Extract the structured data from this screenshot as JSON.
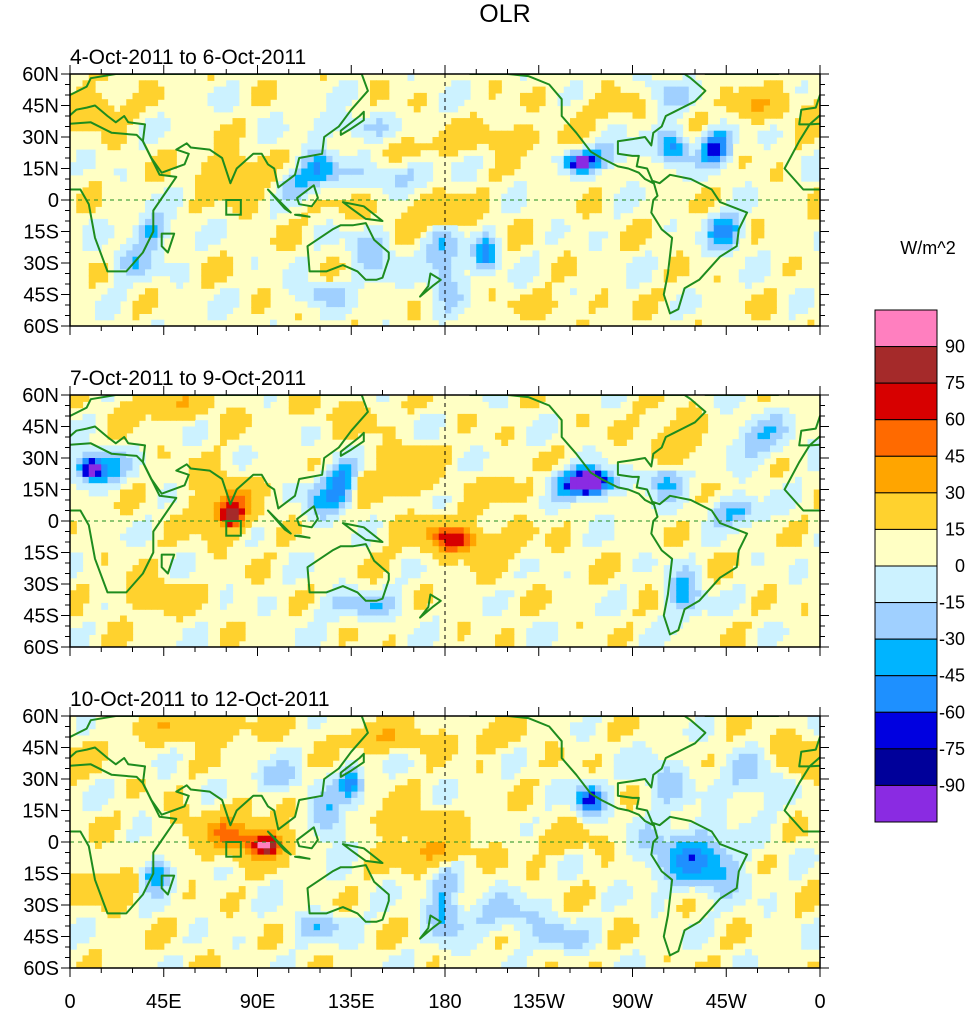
{
  "chart_data": {
    "type": "heatmap",
    "title": "OLR",
    "units": "W/m^2",
    "panels": [
      {
        "title": "4-Oct-2011 to 6-Oct-2011",
        "anomalies": [
          {
            "lon": 75,
            "lat": 15,
            "value": 30,
            "rx": 10,
            "ry": 6
          },
          {
            "lon": 85,
            "lat": 5,
            "value": 30,
            "rx": 6,
            "ry": 5
          },
          {
            "lon": 110,
            "lat": 8,
            "value": -30,
            "rx": 7,
            "ry": 6
          },
          {
            "lon": 120,
            "lat": 15,
            "value": -45,
            "rx": 6,
            "ry": 6
          },
          {
            "lon": 135,
            "lat": 35,
            "value": -30,
            "rx": 12,
            "ry": 4
          },
          {
            "lon": 155,
            "lat": 12,
            "value": -30,
            "rx": 14,
            "ry": 5
          },
          {
            "lon": 170,
            "lat": 25,
            "value": 15,
            "rx": 12,
            "ry": 5
          },
          {
            "lon": 160,
            "lat": -5,
            "value": 15,
            "rx": 25,
            "ry": 6
          },
          {
            "lon": 180,
            "lat": -8,
            "value": 30,
            "rx": 8,
            "ry": 4
          },
          {
            "lon": 180,
            "lat": -30,
            "value": -45,
            "rx": 6,
            "ry": 12
          },
          {
            "lon": 200,
            "lat": -25,
            "value": -60,
            "rx": 4,
            "ry": 6
          },
          {
            "lon": 245,
            "lat": 18,
            "value": -75,
            "rx": 6,
            "ry": 3
          },
          {
            "lon": 260,
            "lat": 22,
            "value": -30,
            "rx": 10,
            "ry": 5
          },
          {
            "lon": 290,
            "lat": 25,
            "value": -60,
            "rx": 5,
            "ry": 6
          },
          {
            "lon": 310,
            "lat": 25,
            "value": -75,
            "rx": 5,
            "ry": 6
          },
          {
            "lon": 315,
            "lat": -15,
            "value": -60,
            "rx": 6,
            "ry": 6
          },
          {
            "lon": 210,
            "lat": 30,
            "value": 30,
            "rx": 14,
            "ry": 4
          },
          {
            "lon": 40,
            "lat": -15,
            "value": -45,
            "rx": 6,
            "ry": 6
          },
          {
            "lon": 30,
            "lat": -30,
            "value": -30,
            "rx": 8,
            "ry": 6
          },
          {
            "lon": 10,
            "lat": 45,
            "value": 30,
            "rx": 10,
            "ry": 6
          },
          {
            "lon": 260,
            "lat": 45,
            "value": 15,
            "rx": 15,
            "ry": 5
          },
          {
            "lon": 285,
            "lat": 50,
            "value": -30,
            "rx": 8,
            "ry": 6
          },
          {
            "lon": 145,
            "lat": -25,
            "value": -30,
            "rx": 8,
            "ry": 10
          },
          {
            "lon": 330,
            "lat": 45,
            "value": 30,
            "rx": 12,
            "ry": 5
          },
          {
            "lon": 235,
            "lat": -50,
            "value": 15,
            "rx": 15,
            "ry": 4
          },
          {
            "lon": 120,
            "lat": -45,
            "value": -30,
            "rx": 8,
            "ry": 4
          }
        ]
      },
      {
        "title": "7-Oct-2011 to 9-Oct-2011",
        "anomalies": [
          {
            "lon": 75,
            "lat": 8,
            "value": 45,
            "rx": 10,
            "ry": 10
          },
          {
            "lon": 78,
            "lat": 2,
            "value": 60,
            "rx": 4,
            "ry": 4
          },
          {
            "lon": 10,
            "lat": 25,
            "value": -75,
            "rx": 4,
            "ry": 4
          },
          {
            "lon": 15,
            "lat": 25,
            "value": -45,
            "rx": 8,
            "ry": 6
          },
          {
            "lon": 130,
            "lat": 18,
            "value": -60,
            "rx": 5,
            "ry": 8
          },
          {
            "lon": 155,
            "lat": 18,
            "value": 30,
            "rx": 14,
            "ry": 4
          },
          {
            "lon": 180,
            "lat": -5,
            "value": 30,
            "rx": 16,
            "ry": 5
          },
          {
            "lon": 185,
            "lat": -10,
            "value": 45,
            "rx": 8,
            "ry": 4
          },
          {
            "lon": 195,
            "lat": -12,
            "value": 15,
            "rx": 20,
            "ry": 6
          },
          {
            "lon": 210,
            "lat": 15,
            "value": 30,
            "rx": 10,
            "ry": 4
          },
          {
            "lon": 250,
            "lat": 18,
            "value": -90,
            "rx": 6,
            "ry": 4
          },
          {
            "lon": 245,
            "lat": 18,
            "value": -60,
            "rx": 10,
            "ry": 5
          },
          {
            "lon": 285,
            "lat": 20,
            "value": -45,
            "rx": 6,
            "ry": 6
          },
          {
            "lon": 320,
            "lat": 5,
            "value": -45,
            "rx": 8,
            "ry": 5
          },
          {
            "lon": 295,
            "lat": -35,
            "value": -45,
            "rx": 6,
            "ry": 8
          },
          {
            "lon": 50,
            "lat": 55,
            "value": 30,
            "rx": 15,
            "ry": 5
          },
          {
            "lon": 130,
            "lat": 50,
            "value": 15,
            "rx": 15,
            "ry": 6
          },
          {
            "lon": 290,
            "lat": 40,
            "value": 30,
            "rx": 10,
            "ry": 8
          },
          {
            "lon": 330,
            "lat": 40,
            "value": -30,
            "rx": 12,
            "ry": 8
          },
          {
            "lon": 40,
            "lat": -35,
            "value": 30,
            "rx": 12,
            "ry": 5
          },
          {
            "lon": 140,
            "lat": -40,
            "value": -30,
            "rx": 15,
            "ry": 5
          },
          {
            "lon": 160,
            "lat": 30,
            "value": 30,
            "rx": 10,
            "ry": 4
          },
          {
            "lon": 120,
            "lat": 10,
            "value": -30,
            "rx": 6,
            "ry": 8
          }
        ]
      },
      {
        "title": "10-Oct-2011 to 12-Oct-2011",
        "anomalies": [
          {
            "lon": 90,
            "lat": 0,
            "value": 45,
            "rx": 12,
            "ry": 6
          },
          {
            "lon": 95,
            "lat": -2,
            "value": 60,
            "rx": 4,
            "ry": 3
          },
          {
            "lon": 75,
            "lat": 5,
            "value": 30,
            "rx": 15,
            "ry": 8
          },
          {
            "lon": 175,
            "lat": -5,
            "value": 45,
            "rx": 12,
            "ry": 5
          },
          {
            "lon": 160,
            "lat": 10,
            "value": 30,
            "rx": 15,
            "ry": 5
          },
          {
            "lon": 135,
            "lat": 28,
            "value": -60,
            "rx": 4,
            "ry": 6
          },
          {
            "lon": 125,
            "lat": 10,
            "value": -45,
            "rx": 6,
            "ry": 8
          },
          {
            "lon": 180,
            "lat": -30,
            "value": -45,
            "rx": 6,
            "ry": 12
          },
          {
            "lon": 250,
            "lat": 20,
            "value": -75,
            "rx": 5,
            "ry": 5
          },
          {
            "lon": 295,
            "lat": -5,
            "value": -45,
            "rx": 15,
            "ry": 10
          },
          {
            "lon": 310,
            "lat": -15,
            "value": -30,
            "rx": 10,
            "ry": 8
          },
          {
            "lon": 40,
            "lat": -15,
            "value": -60,
            "rx": 5,
            "ry": 6
          },
          {
            "lon": 20,
            "lat": -20,
            "value": 30,
            "rx": 10,
            "ry": 6
          },
          {
            "lon": 60,
            "lat": 55,
            "value": 30,
            "rx": 20,
            "ry": 5
          },
          {
            "lon": 150,
            "lat": 50,
            "value": 30,
            "rx": 15,
            "ry": 5
          },
          {
            "lon": 200,
            "lat": 50,
            "value": 15,
            "rx": 15,
            "ry": 5
          },
          {
            "lon": 330,
            "lat": 30,
            "value": -30,
            "rx": 12,
            "ry": 8
          },
          {
            "lon": 350,
            "lat": 40,
            "value": 30,
            "rx": 10,
            "ry": 8
          },
          {
            "lon": 210,
            "lat": -35,
            "value": -30,
            "rx": 12,
            "ry": 6
          },
          {
            "lon": 235,
            "lat": -45,
            "value": -30,
            "rx": 10,
            "ry": 5
          },
          {
            "lon": 285,
            "lat": 30,
            "value": -30,
            "rx": 8,
            "ry": 8
          },
          {
            "lon": 100,
            "lat": 30,
            "value": -30,
            "rx": 10,
            "ry": 5
          },
          {
            "lon": 120,
            "lat": -40,
            "value": -30,
            "rx": 10,
            "ry": 5
          },
          {
            "lon": 240,
            "lat": 0,
            "value": 15,
            "rx": 15,
            "ry": 5
          }
        ]
      }
    ],
    "x_ticks": [
      "0",
      "45E",
      "90E",
      "135E",
      "180",
      "135W",
      "90W",
      "45W",
      "0"
    ],
    "x_tick_values": [
      0,
      45,
      90,
      135,
      180,
      225,
      270,
      315,
      360
    ],
    "y_ticks": [
      "60N",
      "45N",
      "30N",
      "15N",
      "0",
      "15S",
      "30S",
      "45S",
      "60S"
    ],
    "y_tick_values": [
      60,
      45,
      30,
      15,
      0,
      -15,
      -30,
      -45,
      -60
    ],
    "xlim": [
      0,
      360
    ],
    "ylim": [
      -60,
      60
    ],
    "reference_lines": [
      "equator",
      "180"
    ],
    "box_region": {
      "lon": [
        75,
        82
      ],
      "lat": [
        -7,
        0
      ]
    },
    "colorbar": {
      "levels": [
        "90",
        "75",
        "60",
        "45",
        "30",
        "15",
        "0",
        "-15",
        "-30",
        "-45",
        "-60",
        "-75",
        "-90"
      ],
      "colors_top_to_bottom": [
        "#ff7fbf",
        "#a52a2a",
        "#d70000",
        "#ff6a00",
        "#ffa500",
        "#ffd22e",
        "#ffffc4",
        "#ccf2ff",
        "#a0d0ff",
        "#00b4ff",
        "#1e90ff",
        "#0000e0",
        "#00009a",
        "#8a2be2"
      ],
      "zero_color": "#ffffc4"
    }
  }
}
